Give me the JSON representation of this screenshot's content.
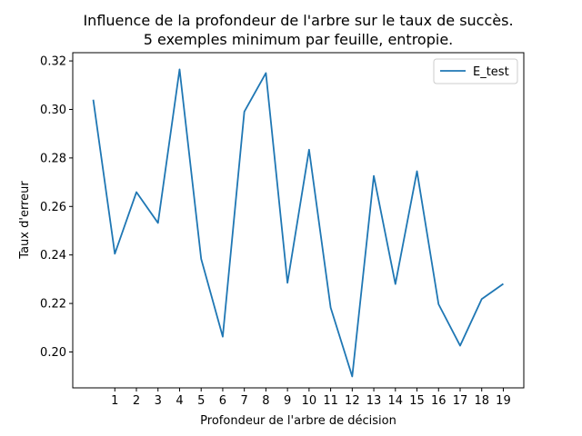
{
  "chart_data": {
    "type": "line",
    "title_line1": "Influence de la profondeur de l'arbre sur le taux de succès.",
    "title_line2": "5 exemples minimum par feuille, entropie.",
    "xlabel": "Profondeur de l'arbre de décision",
    "ylabel": "Taux d'erreur",
    "x_ticks": [
      "1",
      "2",
      "3",
      "4",
      "5",
      "6",
      "7",
      "8",
      "9",
      "10",
      "11",
      "12",
      "13",
      "14",
      "15",
      "16",
      "17",
      "18",
      "19"
    ],
    "y_ticks": [
      "0.20",
      "0.22",
      "0.24",
      "0.26",
      "0.28",
      "0.30",
      "0.32"
    ],
    "xlim": [
      -0.95,
      19.95
    ],
    "ylim": [
      0.1852,
      0.3234
    ],
    "legend_position": "top-right",
    "series": [
      {
        "name": "E_test",
        "color": "#1f77b4",
        "x": [
          0,
          1,
          2,
          3,
          4,
          5,
          6,
          7,
          8,
          9,
          10,
          11,
          12,
          13,
          14,
          15,
          16,
          17,
          18,
          19
        ],
        "y": [
          0.304,
          0.2405,
          0.2659,
          0.2532,
          0.3165,
          0.2384,
          0.2063,
          0.2991,
          0.315,
          0.2285,
          0.2834,
          0.2183,
          0.1899,
          0.2726,
          0.228,
          0.2745,
          0.2197,
          0.2026,
          0.2218,
          0.2281
        ]
      }
    ]
  }
}
